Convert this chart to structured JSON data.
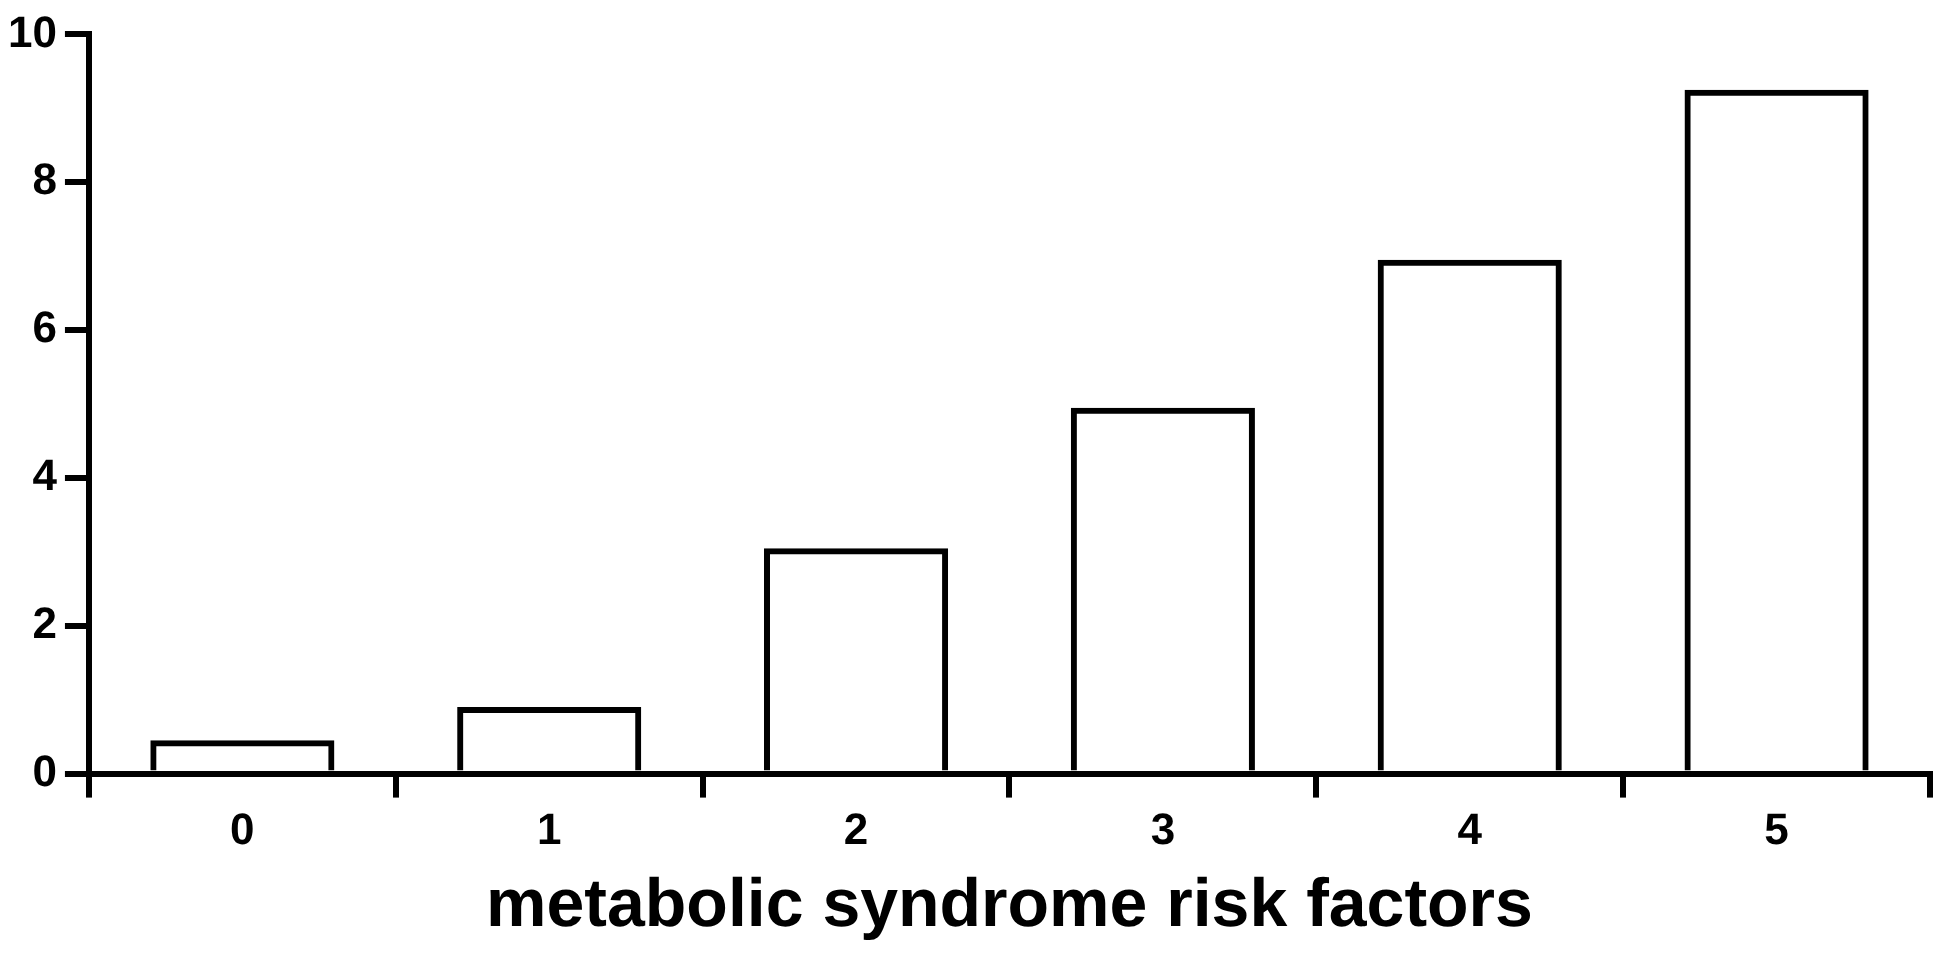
{
  "chart_data": {
    "type": "bar",
    "xlabel": "metabolic syndrome risk factors",
    "categories": [
      "0",
      "1",
      "2",
      "3",
      "4",
      "5"
    ],
    "values": [
      0.45,
      0.9,
      3.05,
      4.95,
      6.95,
      9.25
    ],
    "color": "#000000",
    "ylim": [
      0,
      10
    ],
    "yticks": [
      0,
      2,
      4,
      6,
      8,
      10
    ]
  }
}
